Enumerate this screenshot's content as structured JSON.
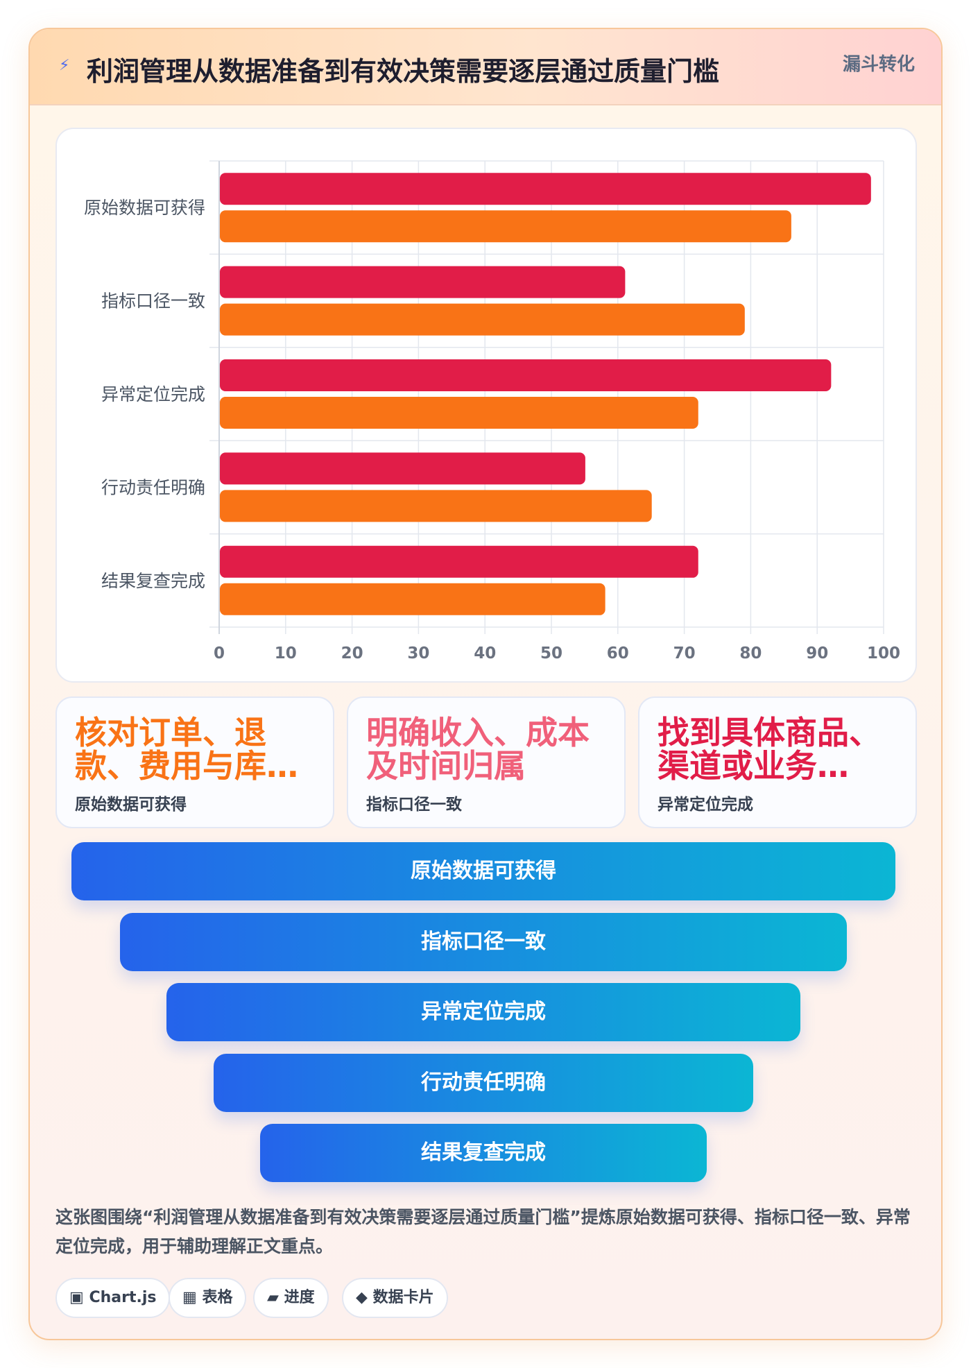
{
  "header": {
    "icon": "lightning-icon",
    "title": "利润管理从数据准备到有效决策需要逐层通过质量门槛",
    "tag": "漏斗转化"
  },
  "chart_data": {
    "type": "bar",
    "orientation": "horizontal",
    "categories": [
      "原始数据可获得",
      "指标口径一致",
      "异常定位完成",
      "行动责任明确",
      "结果复查完成"
    ],
    "series": [
      {
        "values": [
          98,
          61,
          92,
          55,
          72
        ],
        "color": "#e11d48"
      },
      {
        "values": [
          86,
          79,
          72,
          65,
          58
        ],
        "color": "#f97316"
      }
    ],
    "xlim": [
      0,
      100
    ],
    "xticks": [
      0,
      10,
      20,
      30,
      40,
      50,
      60,
      70,
      80,
      90,
      100
    ],
    "grid": true,
    "legend": "none"
  },
  "stats": [
    {
      "value": "核对订单、退款、费用与库…",
      "label": "原始数据可获得",
      "color": "#f97316"
    },
    {
      "value": "明确收入、成本及时间归属",
      "label": "指标口径一致",
      "color": "#f0607a"
    },
    {
      "value": "找到具体商品、渠道或业务…",
      "label": "异常定位完成",
      "color": "#e11d48"
    }
  ],
  "funnel": [
    "原始数据可获得",
    "指标口径一致",
    "异常定位完成",
    "行动责任明确",
    "结果复查完成"
  ],
  "summary": "这张图围绕“利润管理从数据准备到有效决策需要逐层通过质量门槛”提炼原始数据可获得、指标口径一致、异常定位完成，用于辅助理解正文重点。",
  "tags": [
    {
      "icon": "▣",
      "label": "Chart.js"
    },
    {
      "icon": "▦",
      "label": "表格"
    },
    {
      "icon": "▰",
      "label": "进度"
    },
    {
      "icon": "◆",
      "label": "数据卡片"
    }
  ]
}
